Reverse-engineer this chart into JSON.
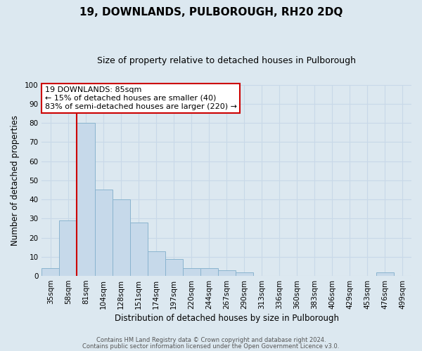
{
  "title": "19, DOWNLANDS, PULBOROUGH, RH20 2DQ",
  "subtitle": "Size of property relative to detached houses in Pulborough",
  "xlabel": "Distribution of detached houses by size in Pulborough",
  "ylabel": "Number of detached properties",
  "bar_labels": [
    "35sqm",
    "58sqm",
    "81sqm",
    "104sqm",
    "128sqm",
    "151sqm",
    "174sqm",
    "197sqm",
    "220sqm",
    "244sqm",
    "267sqm",
    "290sqm",
    "313sqm",
    "336sqm",
    "360sqm",
    "383sqm",
    "406sqm",
    "429sqm",
    "453sqm",
    "476sqm",
    "499sqm"
  ],
  "bar_values": [
    4,
    29,
    80,
    45,
    40,
    28,
    13,
    9,
    4,
    4,
    3,
    2,
    0,
    0,
    0,
    0,
    0,
    0,
    0,
    2,
    0
  ],
  "bar_color": "#c6d9ea",
  "bar_edgecolor": "#8ab4cf",
  "grid_color": "#c8d8e8",
  "background_color": "#dce8f0",
  "vline_color": "#cc0000",
  "annotation_text": "19 DOWNLANDS: 85sqm\n← 15% of detached houses are smaller (40)\n83% of semi-detached houses are larger (220) →",
  "annotation_box_color": "#ffffff",
  "annotation_box_edgecolor": "#cc0000",
  "ylim": [
    0,
    100
  ],
  "yticks": [
    0,
    10,
    20,
    30,
    40,
    50,
    60,
    70,
    80,
    90,
    100
  ],
  "footer_line1": "Contains HM Land Registry data © Crown copyright and database right 2024.",
  "footer_line2": "Contains public sector information licensed under the Open Government Licence v3.0.",
  "title_fontsize": 11,
  "subtitle_fontsize": 9,
  "xlabel_fontsize": 8.5,
  "ylabel_fontsize": 8.5,
  "tick_fontsize": 7.5,
  "annotation_fontsize": 8,
  "footer_fontsize": 6
}
